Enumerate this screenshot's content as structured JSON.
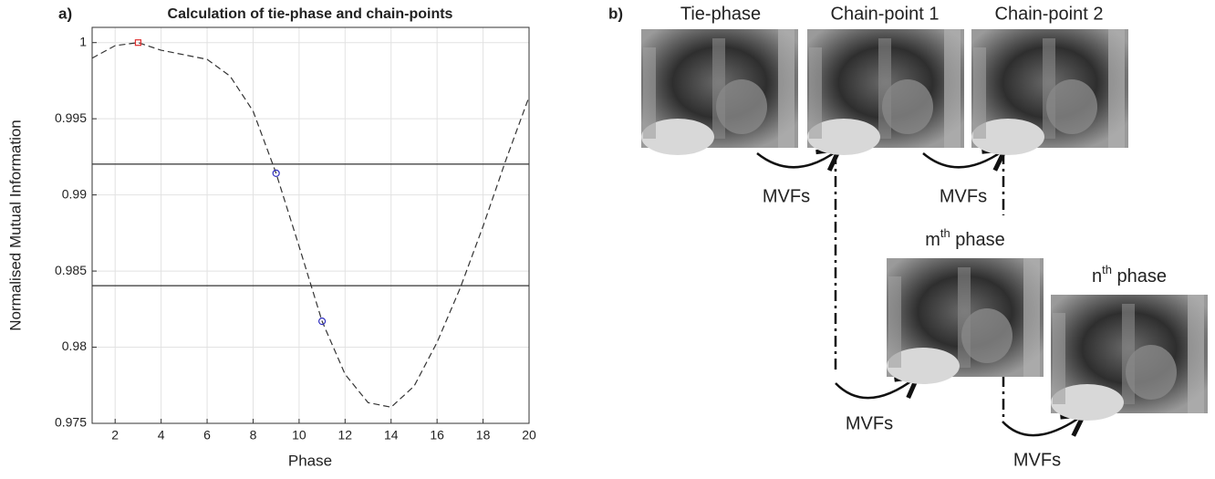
{
  "chart_data": {
    "type": "line",
    "title": "Calculation of tie-phase and chain-points",
    "xlabel": "Phase",
    "ylabel": "Normalised Mutual Information",
    "x": [
      1,
      2,
      3,
      4,
      5,
      6,
      7,
      8,
      9,
      10,
      11,
      12,
      13,
      14,
      15,
      16,
      17,
      18,
      19,
      20
    ],
    "values": [
      0.99898,
      0.9998,
      1.0,
      0.9995,
      0.9992,
      0.9989,
      0.9978,
      0.9955,
      0.99142,
      0.98662,
      0.9817,
      0.97822,
      0.97636,
      0.97606,
      0.97744,
      0.98032,
      0.98386,
      0.98794,
      0.99232,
      0.99644
    ],
    "color": "#333333",
    "line_style": "dashed",
    "hlines": [
      0.99202,
      0.98404
    ],
    "markers": [
      {
        "x": 3,
        "y": 1.0,
        "shape": "square",
        "color": "#e03030"
      },
      {
        "x": 9,
        "y": 0.99142,
        "shape": "circle",
        "color": "#3030c0"
      },
      {
        "x": 11,
        "y": 0.9817,
        "shape": "circle",
        "color": "#3030c0"
      }
    ],
    "xlim": [
      1,
      20
    ],
    "xticks": [
      2,
      4,
      6,
      8,
      10,
      12,
      14,
      16,
      18,
      20
    ],
    "ylim": [
      0.975,
      1.001
    ],
    "yticks": [
      0.975,
      0.98,
      0.985,
      0.99,
      0.995,
      1
    ],
    "grid": true
  },
  "panel_labels": [
    "a)",
    "b)"
  ],
  "diagram": {
    "images": [
      {
        "label": "Tie-phase"
      },
      {
        "label": "Chain-point 1"
      },
      {
        "label": "Chain-point 2"
      },
      {
        "base": "m",
        "sup": "th",
        "rest": " phase"
      },
      {
        "base": "n",
        "sup": "th",
        "rest": " phase"
      }
    ],
    "arrow_labels": [
      "MVFs",
      "MVFs",
      "MVFs",
      "MVFs"
    ]
  }
}
